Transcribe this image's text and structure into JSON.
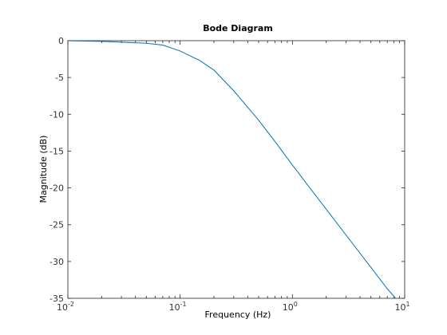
{
  "chart_data": {
    "type": "line",
    "title": "Bode Diagram",
    "xlabel": "Frequency  (Hz)",
    "ylabel": "Magnitude (dB)",
    "xscale": "log",
    "xlim": [
      0.01,
      10
    ],
    "ylim": [
      -35,
      0
    ],
    "grid": false,
    "x_ticks": [
      {
        "value": 0.01,
        "base": "10",
        "exp": "-2"
      },
      {
        "value": 0.1,
        "base": "10",
        "exp": "-1"
      },
      {
        "value": 1,
        "base": "10",
        "exp": "0"
      },
      {
        "value": 10,
        "base": "10",
        "exp": "1"
      }
    ],
    "y_ticks": [
      {
        "value": 0,
        "label": "0"
      },
      {
        "value": -5,
        "label": "-5"
      },
      {
        "value": -10,
        "label": "-10"
      },
      {
        "value": -15,
        "label": "-15"
      },
      {
        "value": -20,
        "label": "-20"
      },
      {
        "value": -25,
        "label": "-25"
      },
      {
        "value": -30,
        "label": "-30"
      },
      {
        "value": -35,
        "label": "-35"
      }
    ],
    "series": [
      {
        "color": "#0072bd",
        "x": [
          0.01,
          0.02,
          0.03,
          0.05,
          0.07,
          0.1,
          0.15,
          0.2,
          0.3,
          0.5,
          0.7,
          1,
          2,
          3,
          5,
          7,
          9
        ],
        "y": [
          -0.02,
          -0.1,
          -0.2,
          -0.35,
          -0.6,
          -1.4,
          -2.7,
          -4.0,
          -6.8,
          -10.8,
          -13.7,
          -16.9,
          -22.9,
          -26.4,
          -30.8,
          -33.7,
          -35.6
        ]
      }
    ]
  }
}
